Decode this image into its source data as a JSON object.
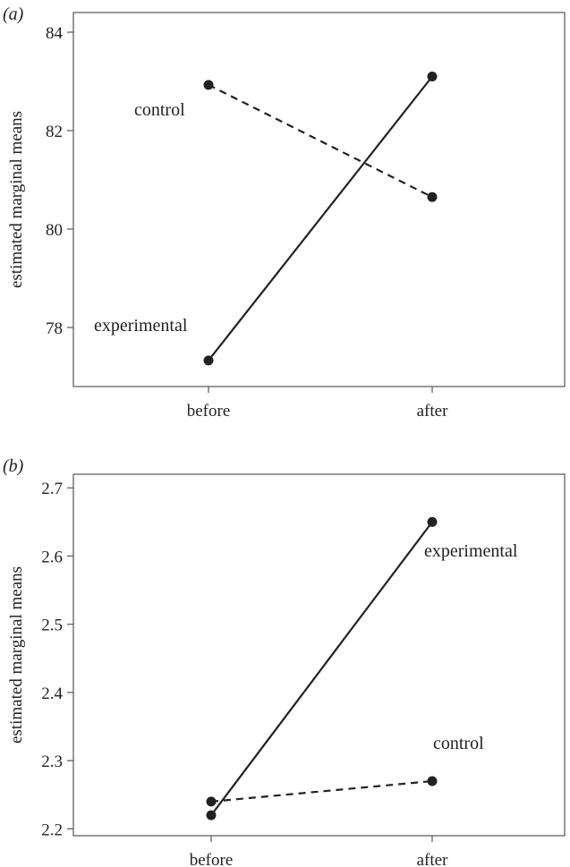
{
  "chart_data": [
    {
      "panel_label": "(a)",
      "type": "line",
      "x": [
        "before",
        "after"
      ],
      "ylabel": "estimated marginal means",
      "ylim": [
        76.8,
        84.4
      ],
      "yticks": [
        "78",
        "80",
        "82",
        "84"
      ],
      "grid": false,
      "series": [
        {
          "name": "control",
          "values": [
            82.93,
            80.65
          ],
          "line_style": "dashed",
          "color": "#222222"
        },
        {
          "name": "experimental",
          "values": [
            77.33,
            83.1
          ],
          "line_style": "solid",
          "color": "#222222"
        }
      ]
    },
    {
      "panel_label": "(b)",
      "type": "line",
      "x": [
        "before",
        "after"
      ],
      "ylabel": "estimated marginal means",
      "ylim": [
        2.19,
        2.72
      ],
      "yticks": [
        "2.2",
        "2.3",
        "2.4",
        "2.5",
        "2.6",
        "2.7"
      ],
      "grid": false,
      "series": [
        {
          "name": "experimental",
          "values": [
            2.22,
            2.65
          ],
          "line_style": "solid",
          "color": "#222222"
        },
        {
          "name": "control",
          "values": [
            2.24,
            2.27
          ],
          "line_style": "dashed",
          "color": "#222222"
        }
      ]
    }
  ]
}
